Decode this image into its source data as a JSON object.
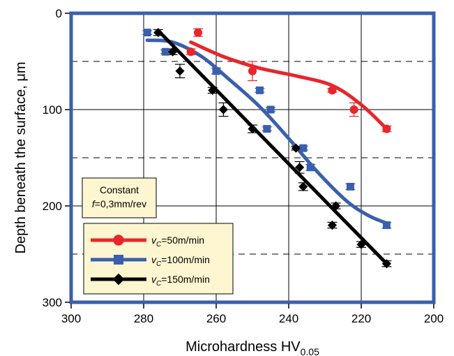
{
  "chart_data": {
    "type": "scatter",
    "xlabel": "Microhardness HV",
    "xlabel_sub": "0.05",
    "ylabel": "Depth beneath the surface, μm",
    "xlim": [
      300,
      200
    ],
    "ylim": [
      0,
      300
    ],
    "x_reversed": true,
    "y_inverted": true,
    "x_ticks": [
      "300",
      "280",
      "260",
      "240",
      "220",
      "200"
    ],
    "y_ticks": [
      "0",
      "100",
      "200",
      "300"
    ],
    "grid": "vertical solid at 20 HV; horizontal dashed at 50, 150, 250 μm",
    "annotation": {
      "line1": "Constant",
      "line2_italic": "f",
      "line2_rest": "=0,3mm/rev"
    },
    "legend_position": "bottom-left",
    "series": [
      {
        "name_italic": "v",
        "name_sub": "C",
        "name_rest": "=50m/min",
        "color": "#e8262b",
        "marker": "circle",
        "points": [
          [
            265,
            20
          ],
          [
            267,
            40
          ],
          [
            250,
            60
          ],
          [
            228,
            80
          ],
          [
            222,
            100
          ],
          [
            213,
            120
          ]
        ],
        "errors": [
          4,
          3,
          10,
          2,
          7,
          3
        ],
        "curve": [
          [
            267,
            30
          ],
          [
            258,
            45
          ],
          [
            248,
            57
          ],
          [
            238,
            65
          ],
          [
            228,
            75
          ],
          [
            220,
            95
          ],
          [
            213,
            120
          ]
        ]
      },
      {
        "name_italic": "v",
        "name_sub": "C",
        "name_rest": "=100m/min",
        "color": "#3a5fad",
        "marker": "square",
        "points": [
          [
            279,
            20
          ],
          [
            274,
            40
          ],
          [
            260,
            60
          ],
          [
            248,
            80
          ],
          [
            245,
            100
          ],
          [
            246,
            120
          ],
          [
            236,
            140
          ],
          [
            234,
            160
          ],
          [
            223,
            180
          ],
          [
            213,
            220
          ]
        ],
        "errors": [
          2,
          2,
          3,
          2,
          2,
          2,
          2,
          3,
          3,
          3
        ],
        "curve": [
          [
            279,
            28
          ],
          [
            272,
            30
          ],
          [
            264,
            45
          ],
          [
            256,
            70
          ],
          [
            248,
            97
          ],
          [
            240,
            130
          ],
          [
            232,
            165
          ],
          [
            224,
            195
          ],
          [
            218,
            210
          ],
          [
            213,
            218
          ]
        ]
      },
      {
        "name_italic": "v",
        "name_sub": "C",
        "name_rest": "=150m/min",
        "color": "#000000",
        "marker": "diamond",
        "points": [
          [
            276,
            20
          ],
          [
            272,
            40
          ],
          [
            270,
            60
          ],
          [
            261,
            80
          ],
          [
            258,
            100
          ],
          [
            250,
            120
          ],
          [
            238,
            140
          ],
          [
            237,
            160
          ],
          [
            236,
            180
          ],
          [
            227,
            200
          ],
          [
            228,
            220
          ],
          [
            220,
            240
          ],
          [
            213,
            260
          ]
        ],
        "errors": [
          3,
          3,
          7,
          3,
          7,
          4,
          2,
          6,
          4,
          3,
          3,
          3,
          3
        ],
        "curve": [
          [
            276,
            18
          ],
          [
            213,
            260
          ]
        ]
      }
    ]
  }
}
